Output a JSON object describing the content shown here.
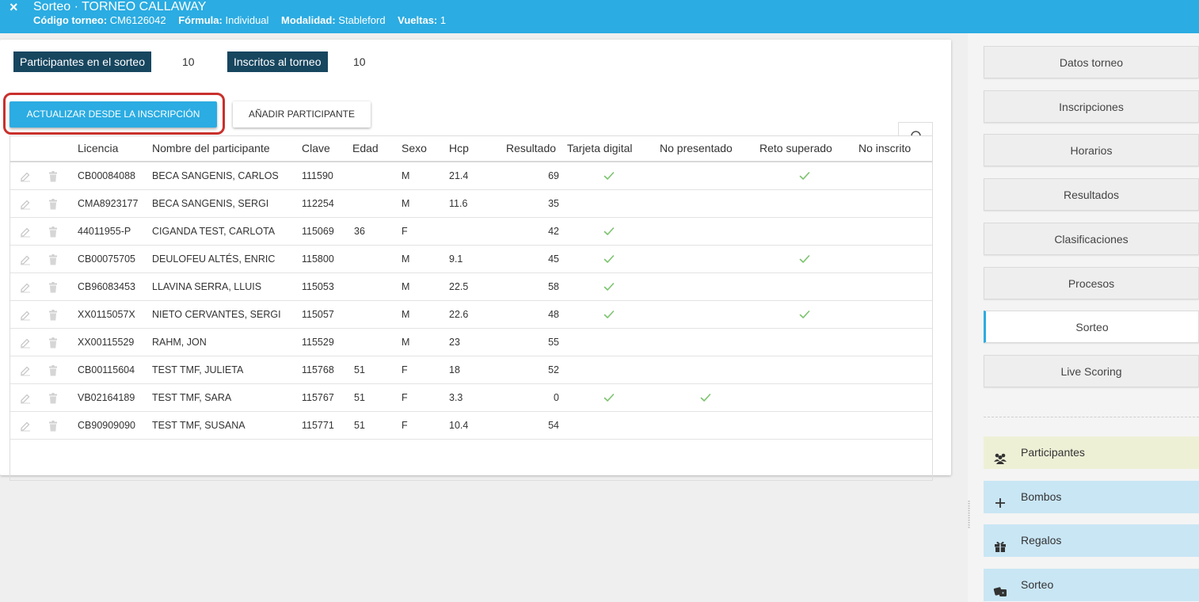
{
  "header": {
    "close_icon": "×",
    "title": "Sorteo · TORNEO CALLAWAY",
    "meta": [
      {
        "label": "Código torneo:",
        "value": "CM6126042"
      },
      {
        "label": "Fórmula:",
        "value": "Individual"
      },
      {
        "label": "Modalidad:",
        "value": "Stableford"
      },
      {
        "label": "Vueltas:",
        "value": "1"
      }
    ]
  },
  "counters": {
    "participants_label": "Participantes en el sorteo",
    "participants_value": "10",
    "registered_label": "Inscritos al torneo",
    "registered_value": "10"
  },
  "actions": {
    "update_label": "ACTUALIZAR DESDE LA INSCRIPCIÓN",
    "add_label": "AÑADIR PARTICIPANTE"
  },
  "table": {
    "columns": [
      "Licencia",
      "Nombre del participante",
      "Clave",
      "Edad",
      "Sexo",
      "Hcp",
      "Resultado",
      "Tarjeta digital",
      "No presentado",
      "Reto superado",
      "No inscrito"
    ],
    "rows": [
      {
        "licencia": "CB00084088",
        "nombre": "BECA SANGENIS, CARLOS",
        "clave": "111590",
        "edad": "",
        "sexo": "M",
        "hcp": "21.4",
        "resultado": "69",
        "tarjeta": true,
        "no_presentado": false,
        "reto": true,
        "no_inscrito": false
      },
      {
        "licencia": "CMA8923177",
        "nombre": "BECA SANGENIS, SERGI",
        "clave": "112254",
        "edad": "",
        "sexo": "M",
        "hcp": "11.6",
        "resultado": "35",
        "tarjeta": false,
        "no_presentado": false,
        "reto": false,
        "no_inscrito": false
      },
      {
        "licencia": "44011955-P",
        "nombre": "CIGANDA TEST, CARLOTA",
        "clave": "115069",
        "edad": "36",
        "sexo": "F",
        "hcp": "",
        "resultado": "42",
        "tarjeta": true,
        "no_presentado": false,
        "reto": false,
        "no_inscrito": false
      },
      {
        "licencia": "CB00075705",
        "nombre": "DEULOFEU ALTÉS, ENRIC",
        "clave": "115800",
        "edad": "",
        "sexo": "M",
        "hcp": "9.1",
        "resultado": "45",
        "tarjeta": true,
        "no_presentado": false,
        "reto": true,
        "no_inscrito": false
      },
      {
        "licencia": "CB96083453",
        "nombre": "LLAVINA SERRA, LLUIS",
        "clave": "115053",
        "edad": "",
        "sexo": "M",
        "hcp": "22.5",
        "resultado": "58",
        "tarjeta": true,
        "no_presentado": false,
        "reto": false,
        "no_inscrito": false
      },
      {
        "licencia": "XX0115057X",
        "nombre": "NIETO CERVANTES, SERGI",
        "clave": "115057",
        "edad": "",
        "sexo": "M",
        "hcp": "22.6",
        "resultado": "48",
        "tarjeta": true,
        "no_presentado": false,
        "reto": true,
        "no_inscrito": false
      },
      {
        "licencia": "XX00115529",
        "nombre": "RAHM, JON",
        "clave": "115529",
        "edad": "",
        "sexo": "M",
        "hcp": "23",
        "resultado": "55",
        "tarjeta": false,
        "no_presentado": false,
        "reto": false,
        "no_inscrito": false
      },
      {
        "licencia": "CB00115604",
        "nombre": "TEST TMF, JULIETA",
        "clave": "115768",
        "edad": "51",
        "sexo": "F",
        "hcp": "18",
        "resultado": "52",
        "tarjeta": false,
        "no_presentado": false,
        "reto": false,
        "no_inscrito": false
      },
      {
        "licencia": "VB02164189",
        "nombre": "TEST TMF, SARA",
        "clave": "115767",
        "edad": "51",
        "sexo": "F",
        "hcp": "3.3",
        "resultado": "0",
        "tarjeta": true,
        "no_presentado": true,
        "reto": false,
        "no_inscrito": false
      },
      {
        "licencia": "CB90909090",
        "nombre": "TEST TMF, SUSANA",
        "clave": "115771",
        "edad": "51",
        "sexo": "F",
        "hcp": "10.4",
        "resultado": "54",
        "tarjeta": false,
        "no_presentado": false,
        "reto": false,
        "no_inscrito": false
      }
    ]
  },
  "sidebar": {
    "nav": [
      "Datos torneo",
      "Inscripciones",
      "Horarios",
      "Resultados",
      "Clasificaciones",
      "Procesos",
      "Sorteo",
      "Live Scoring"
    ],
    "active": "Sorteo",
    "tools": [
      {
        "label": "Participantes",
        "icon": "users-icon",
        "bg": "#eef0d6"
      },
      {
        "label": "Bombos",
        "icon": "plus-icon",
        "bg": "#c9e6f5"
      },
      {
        "label": "Regalos",
        "icon": "gift-icon",
        "bg": "#c9e6f5"
      },
      {
        "label": "Sorteo",
        "icon": "dice-icon",
        "bg": "#c9e6f5"
      }
    ]
  },
  "colors": {
    "header": "#2bace2",
    "counter_bg": "#17465f",
    "check": "#7cc36e",
    "highlight": "#c9302c"
  }
}
